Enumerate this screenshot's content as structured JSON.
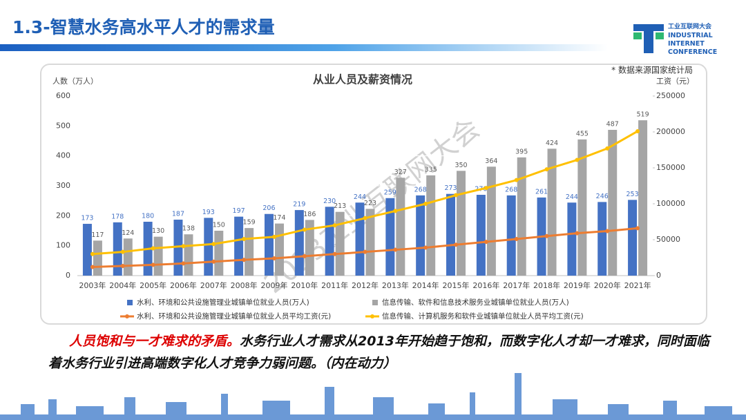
{
  "header": {
    "title": "1.3-智慧水务高水平人才的需求量"
  },
  "logo": {
    "cn": "工业互联网大会",
    "en": [
      "INDUSTRIAL",
      "INTERNET",
      "CONFERENCE"
    ]
  },
  "chart_data": {
    "type": "bar",
    "title": "从业人员及薪资情况",
    "note": "* 数据来源国家统计局",
    "y_label": "人数（万人）",
    "y2_label": "工资（元）",
    "categories": [
      "2003年",
      "2004年",
      "2005年",
      "2006年",
      "2007年",
      "2008年",
      "2009年",
      "2010年",
      "2011年",
      "2012年",
      "2013年",
      "2014年",
      "2015年",
      "2016年",
      "2017年",
      "2018年",
      "2019年",
      "2020年",
      "2021年"
    ],
    "series": [
      {
        "name": "水利、环境和公共设施管理业城镇单位就业人员(万人)",
        "color": "#4472c4",
        "kind": "bar",
        "values": [
          173,
          178,
          180,
          187,
          193,
          197,
          206,
          219,
          230,
          244,
          259,
          268,
          273,
          270,
          268,
          261,
          244,
          246,
          253
        ]
      },
      {
        "name": "信息传输、软件和信息技术服务业城镇单位就业人员(万人)",
        "color": "#a5a5a5",
        "kind": "bar",
        "values": [
          117,
          124,
          130,
          138,
          150,
          159,
          174,
          186,
          213,
          223,
          327,
          335,
          350,
          364,
          395,
          424,
          455,
          487,
          519
        ]
      },
      {
        "name": "水利、环境和公共设施管理业城镇单位就业人员平均工资(元)",
        "color": "#ed7d31",
        "kind": "line",
        "axis": "y2",
        "values": [
          12000,
          13500,
          15000,
          17000,
          19500,
          22000,
          24000,
          27000,
          30000,
          33000,
          36000,
          39000,
          43000,
          47000,
          51000,
          55000,
          59000,
          62000,
          66000
        ]
      },
      {
        "name": "信息传输、计算机服务和软件业城镇单位就业人员平均工资(元)",
        "color": "#ffc000",
        "kind": "line",
        "axis": "y2",
        "values": [
          30000,
          33000,
          38000,
          41000,
          44000,
          51000,
          54000,
          64000,
          70000,
          80000,
          90000,
          100000,
          112000,
          122000,
          133000,
          148000,
          161000,
          177000,
          201000
        ]
      }
    ],
    "ylim": [
      0,
      600
    ],
    "yticks": [
      0,
      100,
      200,
      300,
      400,
      500,
      600
    ],
    "y2lim": [
      0,
      250000
    ],
    "y2ticks": [
      0,
      50000,
      100000,
      150000,
      200000,
      250000
    ]
  },
  "watermark": "2023工业互联网大会",
  "text": {
    "lead": "人员饱和与一才难求的矛盾。",
    "body": "水务行业人才需求从2013年开始趋于饱和，而数字化人才却一才难求，同时面临着水务行业引进高端数字化人才竞争力弱问题。（内在动力）"
  }
}
